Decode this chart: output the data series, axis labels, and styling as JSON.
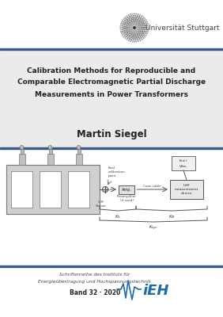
{
  "bg_color": "#f5f5f5",
  "white": "#ffffff",
  "dark_blue": "#2a4a7f",
  "title_line1": "Calibration Methods for Reproducible and",
  "title_line2": "Comparable Electromagnetic Partial Discharge",
  "title_line3": "Measurements in Power Transformers",
  "author": "Martin Siegel",
  "uni_name": "Universität Stuttgart",
  "series_line1": "Schriftenreihe des Instituts für",
  "series_line2": "Energieübertragung und Hochspannungstechnik",
  "band": "Band 32 · 2020",
  "ieh_color": "#1f6bac"
}
